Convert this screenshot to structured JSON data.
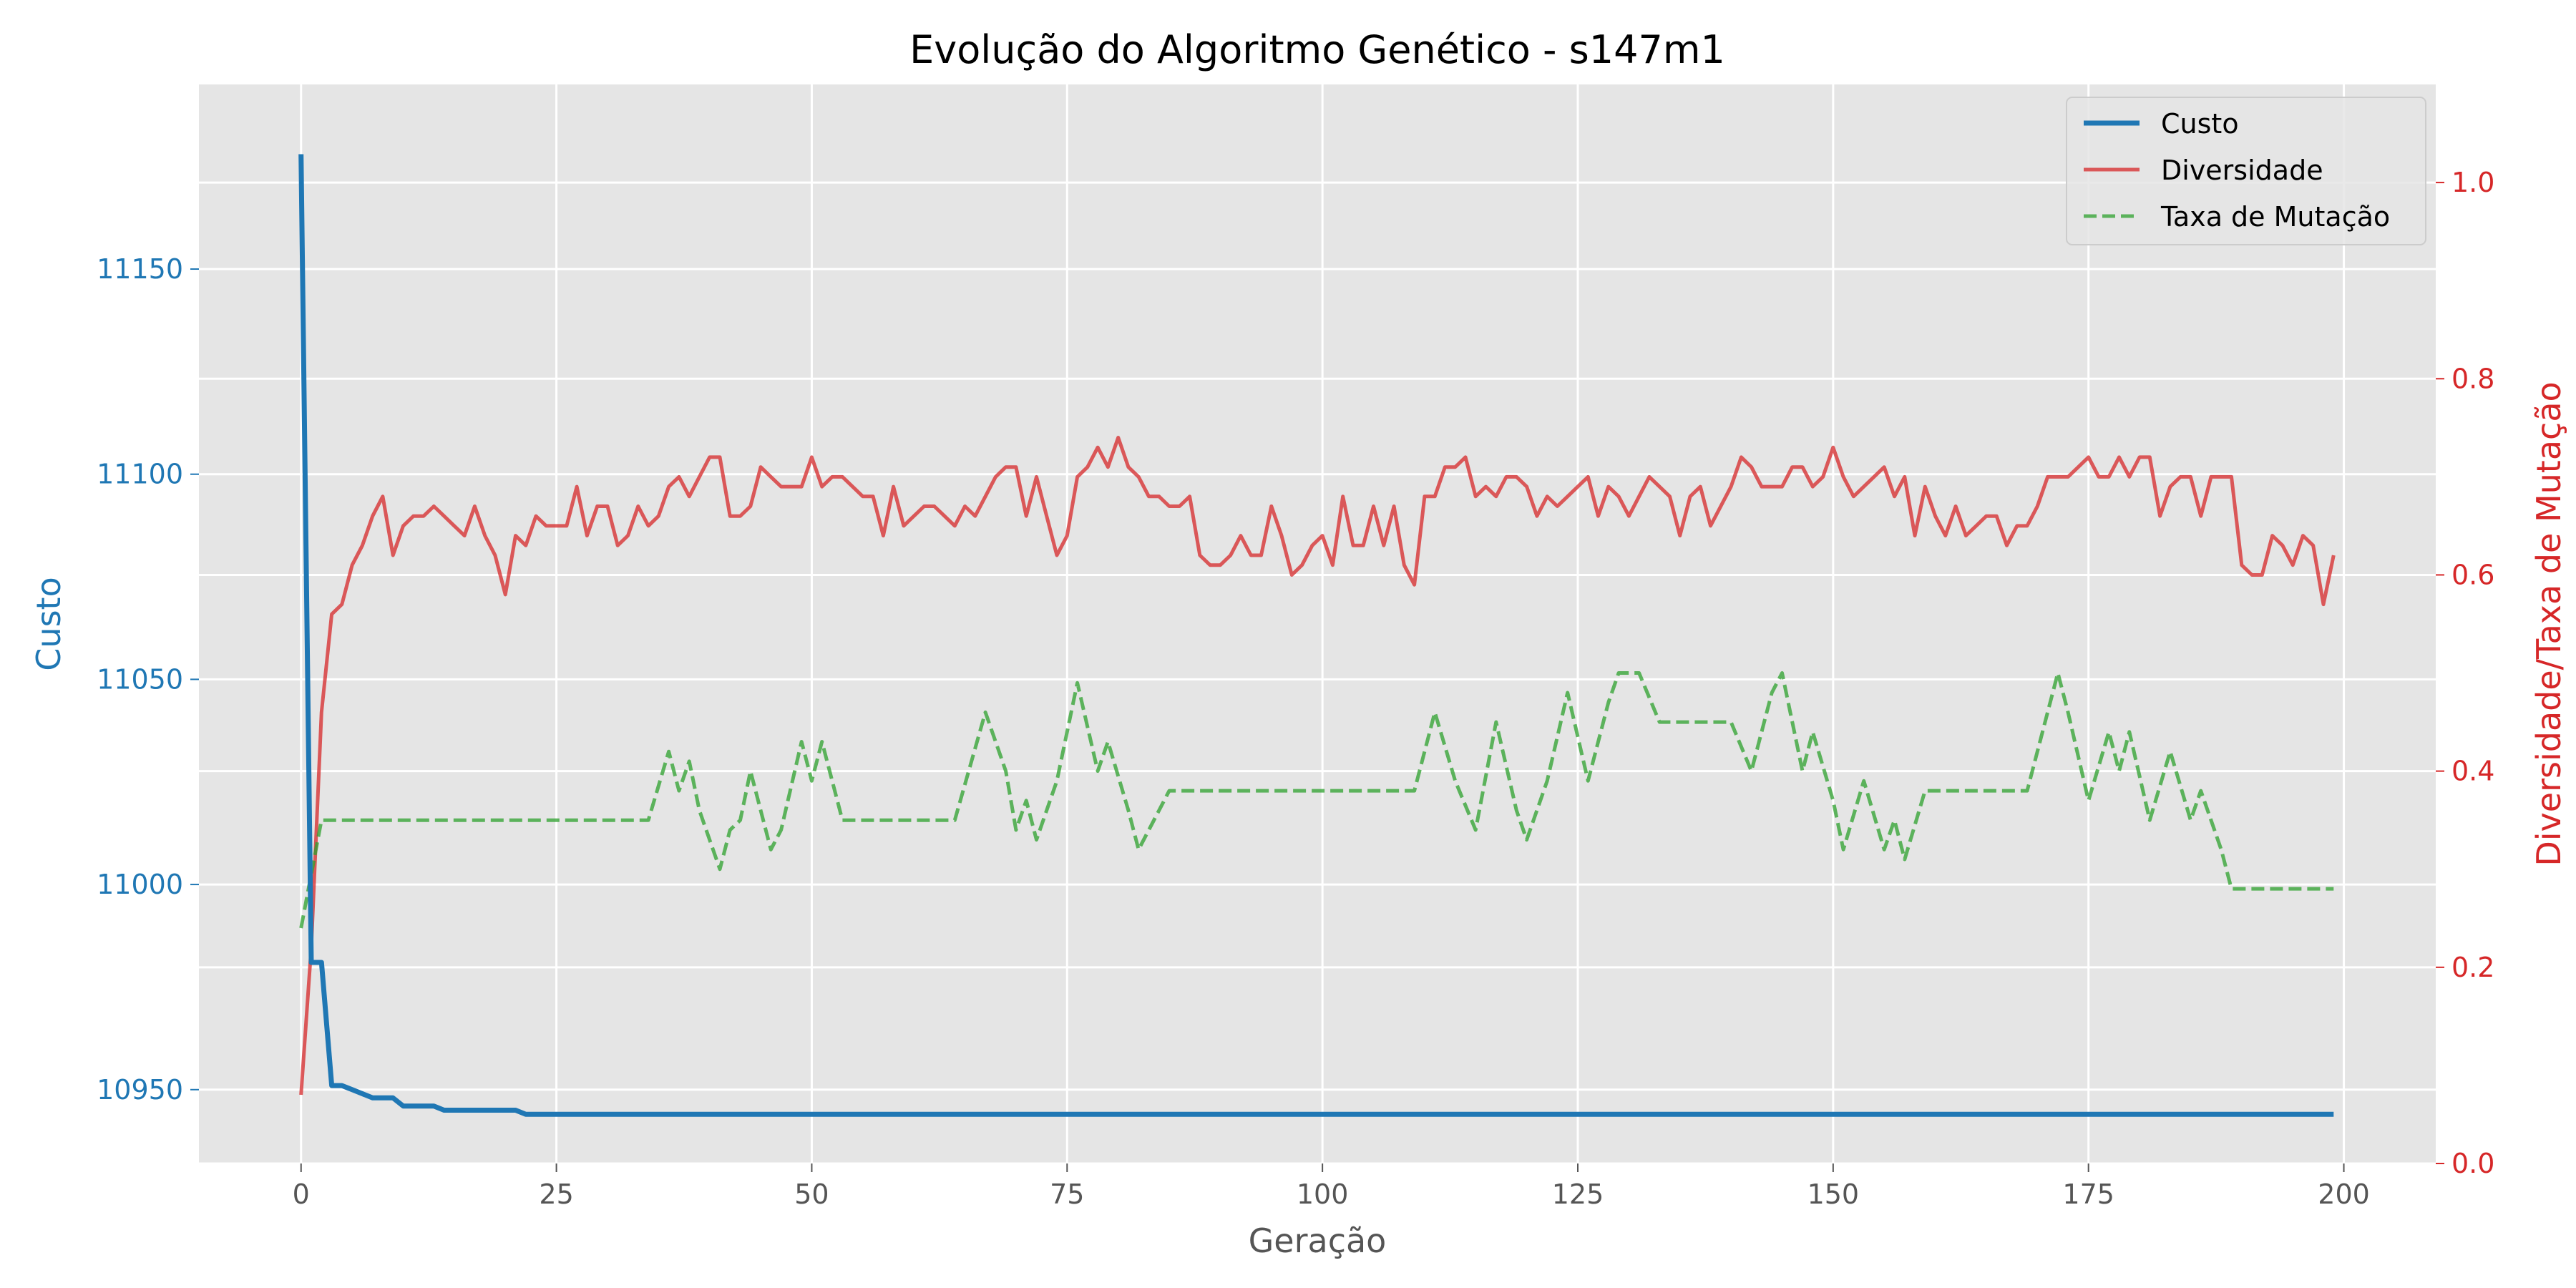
{
  "chart_data": {
    "type": "line",
    "title": "Evolução do Algoritmo Genético - s147m1",
    "xlabel": "Geração",
    "ylabel_left": "Custo",
    "ylabel_right": "Diversidade/Taxa de Mutação",
    "xlim": [
      -10,
      209
    ],
    "ylim_left": [
      10932,
      11195
    ],
    "ylim_right": [
      0.0,
      1.1
    ],
    "x_ticks": [
      0,
      25,
      50,
      75,
      100,
      125,
      150,
      175,
      200
    ],
    "y_left_ticks": [
      10950,
      11000,
      11050,
      11100,
      11150
    ],
    "y_right_ticks": [
      0.0,
      0.2,
      0.4,
      0.6,
      0.8,
      1.0
    ],
    "grid": true,
    "legend_position": "top-right",
    "colors": {
      "Custo": "#1f77b4",
      "Diversidade": "#d62728",
      "Taxa de Mutação": "#2ca02c",
      "background": "#e5e5e5",
      "left_axis_text": "#1f77b4",
      "right_axis_text": "#d62728"
    },
    "series": [
      {
        "name": "Custo",
        "axis": "left",
        "style": "solid",
        "x": [
          0,
          1,
          2,
          3,
          4,
          5,
          6,
          7,
          8,
          9,
          10,
          11,
          12,
          13,
          14,
          15,
          16,
          17,
          18,
          19,
          20,
          21,
          22,
          23,
          24,
          25,
          30,
          40,
          50,
          60,
          70,
          80,
          90,
          100,
          110,
          120,
          130,
          140,
          150,
          160,
          170,
          180,
          190,
          199
        ],
        "y": [
          11178,
          10981,
          10981,
          10951,
          10951,
          10950,
          10949,
          10948,
          10948,
          10948,
          10946,
          10946,
          10946,
          10946,
          10945,
          10945,
          10945,
          10945,
          10945,
          10945,
          10945,
          10945,
          10944,
          10944,
          10944,
          10944,
          10944,
          10944,
          10944,
          10944,
          10944,
          10944,
          10944,
          10944,
          10944,
          10944,
          10944,
          10944,
          10944,
          10944,
          10944,
          10944,
          10944,
          10944
        ]
      },
      {
        "name": "Diversidade",
        "axis": "right",
        "style": "solid",
        "x": [
          0,
          1,
          2,
          3,
          4,
          5,
          6,
          7,
          8,
          9,
          10,
          11,
          12,
          13,
          14,
          15,
          16,
          17,
          18,
          19,
          20,
          21,
          22,
          23,
          24,
          25,
          26,
          27,
          28,
          29,
          30,
          31,
          32,
          33,
          34,
          35,
          36,
          37,
          38,
          39,
          40,
          41,
          42,
          43,
          44,
          45,
          46,
          47,
          48,
          49,
          50,
          51,
          52,
          53,
          54,
          55,
          56,
          57,
          58,
          59,
          60,
          61,
          62,
          63,
          64,
          65,
          66,
          67,
          68,
          69,
          70,
          71,
          72,
          73,
          74,
          75,
          76,
          77,
          78,
          79,
          80,
          81,
          82,
          83,
          84,
          85,
          86,
          87,
          88,
          89,
          90,
          91,
          92,
          93,
          94,
          95,
          96,
          97,
          98,
          99,
          100,
          101,
          102,
          103,
          104,
          105,
          106,
          107,
          108,
          109,
          110,
          111,
          112,
          113,
          114,
          115,
          116,
          117,
          118,
          119,
          120,
          121,
          122,
          123,
          124,
          125,
          126,
          127,
          128,
          129,
          130,
          131,
          132,
          133,
          134,
          135,
          136,
          137,
          138,
          139,
          140,
          141,
          142,
          143,
          144,
          145,
          146,
          147,
          148,
          149,
          150,
          151,
          152,
          153,
          154,
          155,
          156,
          157,
          158,
          159,
          160,
          161,
          162,
          163,
          164,
          165,
          166,
          167,
          168,
          169,
          170,
          171,
          172,
          173,
          174,
          175,
          176,
          177,
          178,
          179,
          180,
          181,
          182,
          183,
          184,
          185,
          186,
          187,
          188,
          189,
          190,
          191,
          192,
          193,
          194,
          195,
          196,
          197,
          198,
          199
        ],
        "y": [
          0.07,
          0.22,
          0.46,
          0.56,
          0.57,
          0.61,
          0.63,
          0.66,
          0.68,
          0.62,
          0.65,
          0.66,
          0.66,
          0.67,
          0.66,
          0.65,
          0.64,
          0.67,
          0.64,
          0.62,
          0.58,
          0.64,
          0.63,
          0.66,
          0.65,
          0.65,
          0.65,
          0.69,
          0.64,
          0.67,
          0.67,
          0.63,
          0.64,
          0.67,
          0.65,
          0.66,
          0.69,
          0.7,
          0.68,
          0.7,
          0.72,
          0.72,
          0.66,
          0.66,
          0.67,
          0.71,
          0.7,
          0.69,
          0.69,
          0.69,
          0.72,
          0.69,
          0.7,
          0.7,
          0.69,
          0.68,
          0.68,
          0.64,
          0.69,
          0.65,
          0.66,
          0.67,
          0.67,
          0.66,
          0.65,
          0.67,
          0.66,
          0.68,
          0.7,
          0.71,
          0.71,
          0.66,
          0.7,
          0.66,
          0.62,
          0.64,
          0.7,
          0.71,
          0.73,
          0.71,
          0.74,
          0.71,
          0.7,
          0.68,
          0.68,
          0.67,
          0.67,
          0.68,
          0.62,
          0.61,
          0.61,
          0.62,
          0.64,
          0.62,
          0.62,
          0.67,
          0.64,
          0.6,
          0.61,
          0.63,
          0.64,
          0.61,
          0.68,
          0.63,
          0.63,
          0.67,
          0.63,
          0.67,
          0.61,
          0.59,
          0.68,
          0.68,
          0.71,
          0.71,
          0.72,
          0.68,
          0.69,
          0.68,
          0.7,
          0.7,
          0.69,
          0.66,
          0.68,
          0.67,
          0.68,
          0.69,
          0.7,
          0.66,
          0.69,
          0.68,
          0.66,
          0.68,
          0.7,
          0.69,
          0.68,
          0.64,
          0.68,
          0.69,
          0.65,
          0.67,
          0.69,
          0.72,
          0.71,
          0.69,
          0.69,
          0.69,
          0.71,
          0.71,
          0.69,
          0.7,
          0.73,
          0.7,
          0.68,
          0.69,
          0.7,
          0.71,
          0.68,
          0.7,
          0.64,
          0.69,
          0.66,
          0.64,
          0.67,
          0.64,
          0.65,
          0.66,
          0.66,
          0.63,
          0.65,
          0.65,
          0.67,
          0.7,
          0.7,
          0.7,
          0.71,
          0.72,
          0.7,
          0.7,
          0.72,
          0.7,
          0.72,
          0.72,
          0.66,
          0.69,
          0.7,
          0.7,
          0.66,
          0.7,
          0.7,
          0.7,
          0.61,
          0.6,
          0.6,
          0.64,
          0.63,
          0.61,
          0.64,
          0.63,
          0.57,
          0.62
        ]
      },
      {
        "name": "Taxa de Mutação",
        "axis": "right",
        "style": "dashed",
        "x": [
          0,
          2,
          5,
          10,
          15,
          20,
          25,
          30,
          34,
          36,
          37,
          38,
          39,
          41,
          42,
          43,
          44,
          46,
          47,
          49,
          50,
          51,
          53,
          55,
          58,
          60,
          62,
          64,
          67,
          69,
          70,
          71,
          72,
          74,
          76,
          78,
          79,
          81,
          82,
          84,
          85,
          88,
          90,
          95,
          100,
          105,
          109,
          111,
          113,
          115,
          117,
          119,
          120,
          122,
          124,
          126,
          128,
          129,
          131,
          133,
          135,
          138,
          140,
          142,
          144,
          145,
          147,
          148,
          150,
          151,
          153,
          155,
          156,
          157,
          159,
          161,
          163,
          166,
          169,
          172,
          173,
          175,
          177,
          178,
          179,
          181,
          183,
          185,
          186,
          188,
          189,
          190,
          192,
          195,
          199
        ],
        "y": [
          0.24,
          0.35,
          0.35,
          0.35,
          0.35,
          0.35,
          0.35,
          0.35,
          0.35,
          0.42,
          0.38,
          0.41,
          0.36,
          0.3,
          0.34,
          0.35,
          0.4,
          0.32,
          0.34,
          0.43,
          0.39,
          0.43,
          0.35,
          0.35,
          0.35,
          0.35,
          0.35,
          0.35,
          0.46,
          0.4,
          0.34,
          0.37,
          0.33,
          0.39,
          0.49,
          0.4,
          0.43,
          0.36,
          0.32,
          0.36,
          0.38,
          0.38,
          0.38,
          0.38,
          0.38,
          0.38,
          0.38,
          0.46,
          0.39,
          0.34,
          0.45,
          0.36,
          0.33,
          0.39,
          0.48,
          0.39,
          0.47,
          0.5,
          0.5,
          0.45,
          0.45,
          0.45,
          0.45,
          0.4,
          0.48,
          0.5,
          0.4,
          0.44,
          0.37,
          0.32,
          0.39,
          0.32,
          0.35,
          0.31,
          0.38,
          0.38,
          0.38,
          0.38,
          0.38,
          0.5,
          0.46,
          0.37,
          0.44,
          0.4,
          0.44,
          0.35,
          0.42,
          0.35,
          0.38,
          0.32,
          0.28,
          0.28,
          0.28,
          0.28,
          0.28
        ]
      }
    ]
  }
}
